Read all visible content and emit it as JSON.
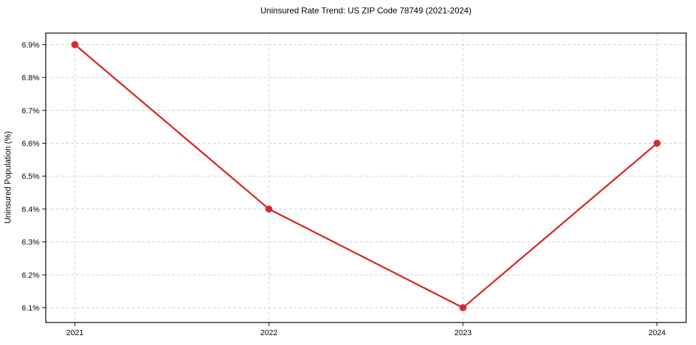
{
  "chart_data": {
    "type": "line",
    "title": "Uninsured Rate Trend: US ZIP Code 78749 (2021-2024)",
    "xlabel": "",
    "ylabel": "Uninsured Population (%)",
    "x": [
      2021,
      2022,
      2023,
      2024
    ],
    "values": [
      6.9,
      6.4,
      6.1,
      6.6
    ],
    "xtick_labels": [
      "2021",
      "2022",
      "2023",
      "2024"
    ],
    "yticks": [
      6.1,
      6.2,
      6.3,
      6.4,
      6.5,
      6.6,
      6.7,
      6.8,
      6.9
    ],
    "ytick_labels": [
      "6.1%",
      "6.2%",
      "6.3%",
      "6.4%",
      "6.5%",
      "6.6%",
      "6.7%",
      "6.8%",
      "6.9%"
    ],
    "xlim": [
      2020.85,
      2024.15
    ],
    "ylim": [
      6.055,
      6.935
    ],
    "grid": true,
    "grid_style": "dashed",
    "legend": "none",
    "colors": {
      "line": "#d62b2b",
      "marker": "#d62b2b",
      "grid": "#c9c9c9",
      "spine": "#000000",
      "text": "#000000",
      "background": "#ffffff"
    }
  }
}
